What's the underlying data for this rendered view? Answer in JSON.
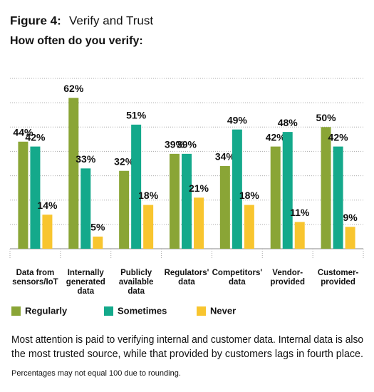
{
  "chart_data": {
    "type": "bar",
    "figure_label": "Figure 4:",
    "title": "Verify and Trust",
    "subtitle": "How often do you verify:",
    "categories": [
      [
        "Data from",
        "sensors/IoT"
      ],
      [
        "Internally",
        "generated",
        "data"
      ],
      [
        "Publicly",
        "available",
        "data"
      ],
      [
        "Regulators'",
        "data"
      ],
      [
        "Competitors'",
        "data"
      ],
      [
        "Vendor-",
        "provided"
      ],
      [
        "Customer-",
        "provided"
      ]
    ],
    "series": [
      {
        "name": "Regularly",
        "color": "#8aa536",
        "values": [
          44,
          62,
          32,
          39,
          34,
          42,
          50
        ],
        "value_labels": [
          "44%",
          "62%",
          "32%",
          "39%",
          "34%",
          "42%",
          "50%"
        ]
      },
      {
        "name": "Sometimes",
        "color": "#14a98b",
        "values": [
          42,
          33,
          51,
          39,
          49,
          48,
          42
        ],
        "value_labels": [
          "42%",
          "33%",
          "51%",
          "39%",
          "49%",
          "48%",
          "42%"
        ]
      },
      {
        "name": "Never",
        "color": "#f8c52f",
        "values": [
          14,
          5,
          18,
          21,
          18,
          11,
          9
        ],
        "value_labels": [
          "14%",
          "5%",
          "18%",
          "21%",
          "18%",
          "11%",
          "9%"
        ]
      }
    ],
    "ylim": [
      0,
      70
    ],
    "yticks": [
      0,
      10,
      20,
      30,
      40,
      50,
      60,
      70
    ],
    "grid": true,
    "legend": "bottom",
    "caption": [
      "Most attention is paid to verifying internal and customer data. Internal data is also",
      "the most trusted source, while that provided by customers lags in fourth place."
    ],
    "footnote": "Percentages may not equal 100 due to rounding."
  }
}
